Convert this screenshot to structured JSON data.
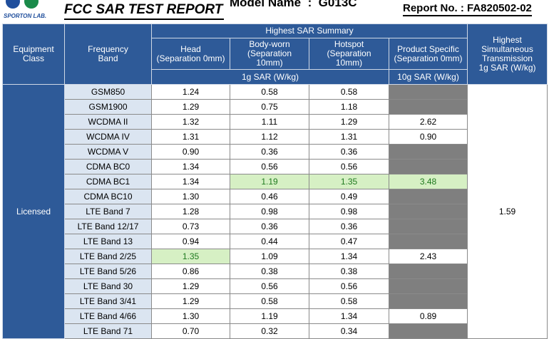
{
  "header": {
    "logo_text": "SPORTON LAB.",
    "title": "FCC SAR TEST REPORT",
    "model_name": "Model Name  :  G013C",
    "report_no": "Report No. : FA820502-02"
  },
  "table": {
    "header": {
      "equipment_class": "Equipment\nClass",
      "frequency_band": "Frequency\nBand",
      "summary": "Highest SAR Summary",
      "head": "Head\n(Separation 0mm)",
      "body_worn": "Body-worn\n(Separation\n10mm)",
      "hotspot": "Hotspot\n(Separation\n10mm)",
      "product_specific": "Product Specific\n(Separation 0mm)",
      "unit_1g": "1g SAR (W/kg)",
      "unit_10g": "10g SAR (W/kg)",
      "highest": "Highest\nSimultaneous\nTransmission\n1g SAR (W/kg)"
    },
    "equipment_class": "Licensed",
    "highest_value": "1.59",
    "rows": [
      {
        "band": "GSM850",
        "head": "1.24",
        "body_worn": "0.58",
        "hotspot": "0.58",
        "product_specific": null
      },
      {
        "band": "GSM1900",
        "head": "1.29",
        "body_worn": "0.75",
        "hotspot": "1.18",
        "product_specific": null
      },
      {
        "band": "WCDMA II",
        "head": "1.32",
        "body_worn": "1.11",
        "hotspot": "1.29",
        "product_specific": "2.62"
      },
      {
        "band": "WCDMA IV",
        "head": "1.31",
        "body_worn": "1.12",
        "hotspot": "1.31",
        "product_specific": "0.90"
      },
      {
        "band": "WCDMA V",
        "head": "0.90",
        "body_worn": "0.36",
        "hotspot": "0.36",
        "product_specific": null
      },
      {
        "band": "CDMA BC0",
        "head": "1.34",
        "body_worn": "0.56",
        "hotspot": "0.56",
        "product_specific": null
      },
      {
        "band": "CDMA BC1",
        "head": "1.34",
        "body_worn": "1.19",
        "hotspot": "1.35",
        "product_specific": "3.48",
        "highlight": [
          "body_worn",
          "hotspot",
          "product_specific"
        ]
      },
      {
        "band": "CDMA BC10",
        "head": "1.30",
        "body_worn": "0.46",
        "hotspot": "0.49",
        "product_specific": null
      },
      {
        "band": "LTE Band 7",
        "head": "1.28",
        "body_worn": "0.98",
        "hotspot": "0.98",
        "product_specific": null
      },
      {
        "band": "LTE Band 12/17",
        "head": "0.73",
        "body_worn": "0.36",
        "hotspot": "0.36",
        "product_specific": null
      },
      {
        "band": "LTE Band 13",
        "head": "0.94",
        "body_worn": "0.44",
        "hotspot": "0.47",
        "product_specific": null
      },
      {
        "band": "LTE Band 2/25",
        "head": "1.35",
        "body_worn": "1.09",
        "hotspot": "1.34",
        "product_specific": "2.43",
        "highlight": [
          "head"
        ]
      },
      {
        "band": "LTE Band 5/26",
        "head": "0.86",
        "body_worn": "0.38",
        "hotspot": "0.38",
        "product_specific": null
      },
      {
        "band": "LTE Band 30",
        "head": "1.29",
        "body_worn": "0.56",
        "hotspot": "0.56",
        "product_specific": null
      },
      {
        "band": "LTE Band 3/41",
        "head": "1.29",
        "body_worn": "0.58",
        "hotspot": "0.58",
        "product_specific": null
      },
      {
        "band": "LTE Band 4/66",
        "head": "1.30",
        "body_worn": "1.19",
        "hotspot": "1.34",
        "product_specific": "0.89"
      },
      {
        "band": "LTE Band 71",
        "head": "0.70",
        "body_worn": "0.32",
        "hotspot": "0.34",
        "product_specific": null
      }
    ]
  }
}
